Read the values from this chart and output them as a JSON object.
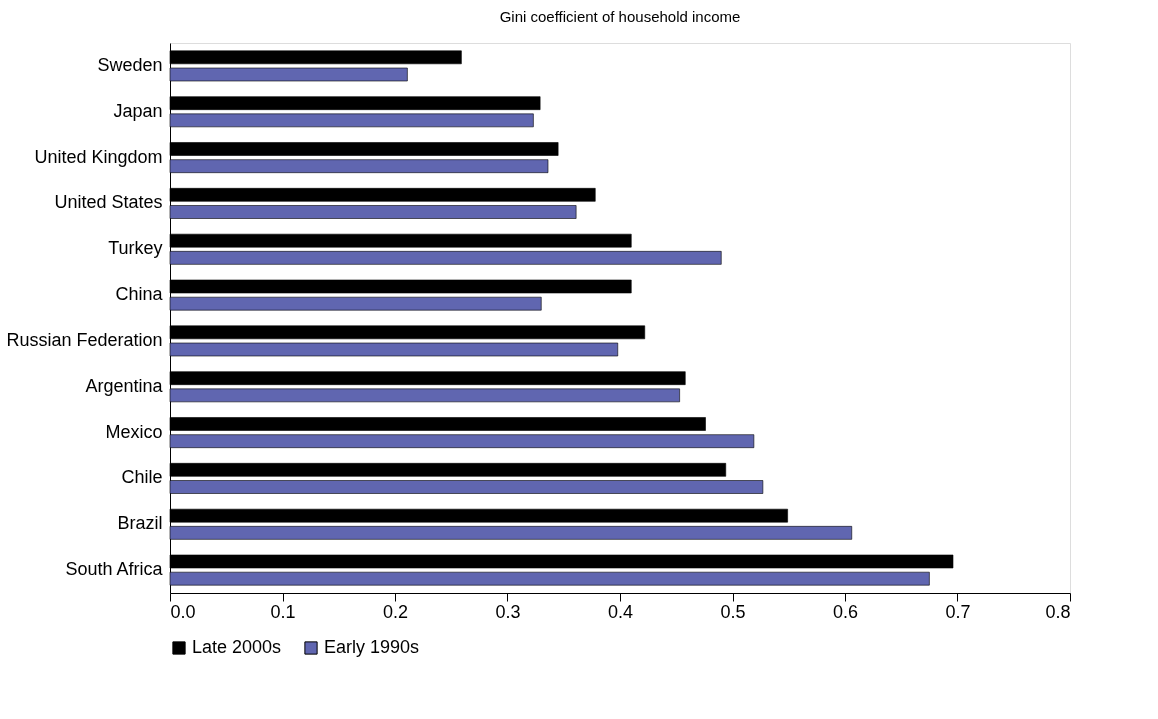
{
  "chart_data": {
    "type": "bar",
    "orientation": "horizontal",
    "title": "Gini coefficient of household income",
    "categories": [
      "Sweden",
      "Japan",
      "United Kingdom",
      "United States",
      "Turkey",
      "China",
      "Russian Federation",
      "Argentina",
      "Mexico",
      "Chile",
      "Brazil",
      "South Africa"
    ],
    "series": [
      {
        "name": "Late 2000s",
        "color": "#000000",
        "values": [
          0.259,
          0.329,
          0.345,
          0.378,
          0.41,
          0.41,
          0.422,
          0.458,
          0.476,
          0.494,
          0.549,
          0.696
        ]
      },
      {
        "name": "Early 1990s",
        "color": "#6066b0",
        "values": [
          0.211,
          0.323,
          0.336,
          0.361,
          0.49,
          0.33,
          0.398,
          0.453,
          0.519,
          0.527,
          0.606,
          0.675
        ]
      }
    ],
    "xlim": [
      0,
      0.8
    ],
    "xticks": [
      {
        "value": 0,
        "label": "0.0"
      },
      0.1,
      0.2,
      0.3,
      0.4,
      0.5,
      0.6,
      0.7,
      0.8
    ],
    "grid": false,
    "legend": "bottom"
  }
}
